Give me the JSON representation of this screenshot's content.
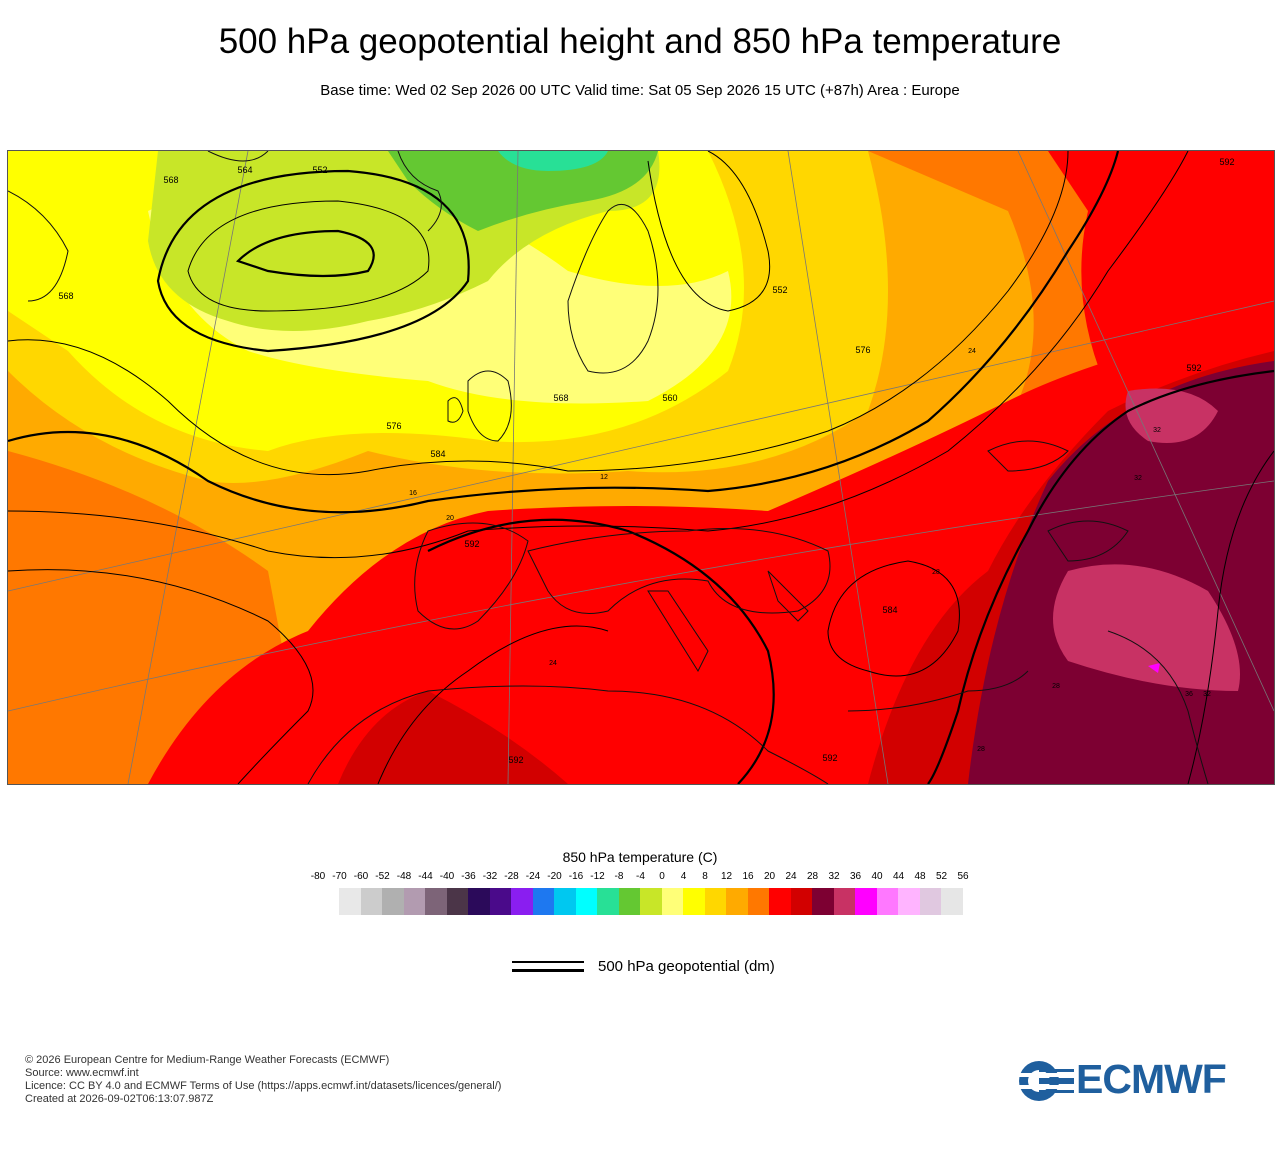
{
  "header": {
    "title": "500 hPa geopotential height and 850 hPa temperature",
    "subtitle": "Base time: Wed 02 Sep 2026 00 UTC Valid time: Sat 05 Sep 2026 15 UTC (+87h) Area : Europe"
  },
  "map": {
    "area": "Europe",
    "contour_labels": [
      "568",
      "564",
      "552",
      "568",
      "552",
      "576",
      "560",
      "568",
      "576",
      "584",
      "592",
      "592",
      "584",
      "592",
      "592",
      "592"
    ],
    "temperature_labels": [
      "16",
      "12",
      "20",
      "24",
      "28",
      "32",
      "32",
      "24",
      "28",
      "36",
      "32",
      "28"
    ]
  },
  "legend": {
    "title": "850 hPa temperature (C)",
    "ticks": [
      "-80",
      "-70",
      "-60",
      "-52",
      "-48",
      "-44",
      "-40",
      "-36",
      "-32",
      "-28",
      "-24",
      "-20",
      "-16",
      "-12",
      "-8",
      "-4",
      "0",
      "4",
      "8",
      "12",
      "16",
      "20",
      "24",
      "28",
      "32",
      "36",
      "40",
      "44",
      "48",
      "52",
      "56"
    ],
    "colors": [
      "#e8e8e8",
      "#cccccc",
      "#b0b0b0",
      "#b29bb0",
      "#7d6478",
      "#4b3548",
      "#2b0a5a",
      "#4a0a8a",
      "#8a1ef0",
      "#1e78f0",
      "#00c8f0",
      "#00ffff",
      "#28e096",
      "#64c832",
      "#c8e628",
      "#ffff78",
      "#ffff00",
      "#ffd700",
      "#ffaa00",
      "#ff7800",
      "#ff0000",
      "#d20000",
      "#7d0032",
      "#c83264",
      "#ff00ff",
      "#ff78ff",
      "#ffb4ff",
      "#e0c8e0",
      "#e6e6e6"
    ],
    "line_label": "500 hPa geopotential (dm)"
  },
  "footer": {
    "lines": [
      "© 2026 European Centre for Medium-Range Weather Forecasts (ECMWF)",
      "Source: www.ecmwf.int",
      "Licence: CC BY 4.0 and ECMWF Terms of Use (https://apps.ecmwf.int/datasets/licences/general/)",
      "Created at 2026-09-02T06:13:07.987Z"
    ],
    "logo_text": "ECMWF",
    "logo_color": "#1f5f9e"
  }
}
